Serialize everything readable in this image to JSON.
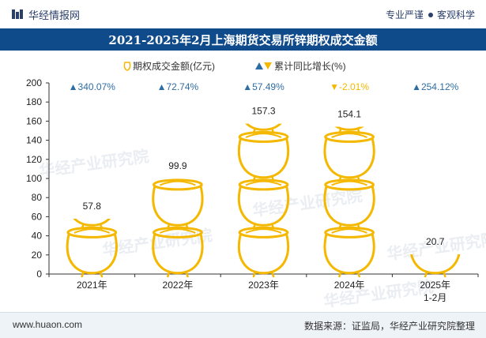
{
  "header": {
    "brand_name": "华经情报网",
    "tagline_left": "专业严谨",
    "tagline_right": "客观科学"
  },
  "footer": {
    "url": "www.huaon.com",
    "source": "数据来源：证监局，华经产业研究院整理"
  },
  "watermark": "华经产业研究院",
  "colors": {
    "title_bg": "#0f4a8a",
    "pot": "#f5b800",
    "growth_up": "#2e6da4",
    "growth_down": "#f5b800"
  },
  "chart_data": {
    "type": "bar",
    "title": "2021-2025年2月上海期货交易所锌期权成交金额",
    "categories": [
      "2021年",
      "2022年",
      "2023年",
      "2024年",
      "2025年\n1-2月"
    ],
    "series": [
      {
        "name": "期权成交金额(亿元)",
        "values": [
          57.8,
          99.9,
          157.3,
          154.1,
          20.7
        ],
        "value_labels": [
          "57.8",
          "99.9",
          "157.3",
          "154.1",
          "20.7"
        ]
      },
      {
        "name": "累计同比增长(%)",
        "values": [
          340.07,
          72.74,
          57.49,
          -2.01,
          254.12
        ],
        "value_labels": [
          "▲340.07%",
          "▲72.74%",
          "▲57.49%",
          "▼-2.01%",
          "▲254.12%"
        ]
      }
    ],
    "yticks": [
      "0",
      "20",
      "40",
      "60",
      "80",
      "100",
      "120",
      "140",
      "160",
      "180",
      "200"
    ],
    "ylim": [
      0,
      200
    ],
    "grid": false,
    "legend": "top-center"
  }
}
